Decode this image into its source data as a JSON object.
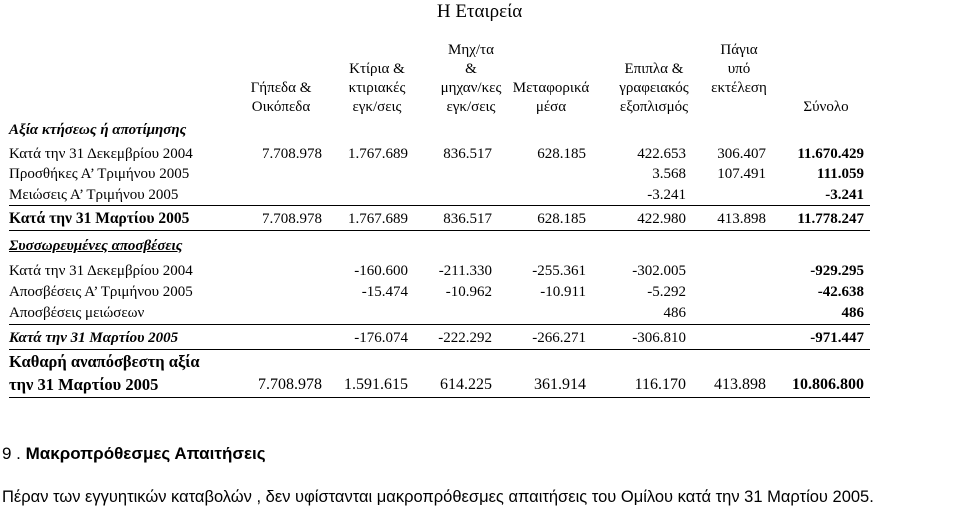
{
  "title": "Η Εταιρεία",
  "columns": [
    {
      "lines": [
        "",
        "Γήπεδα &",
        "Οικόπεδα"
      ]
    },
    {
      "lines": [
        "Κτίρια &",
        "κτιριακές",
        "εγκ/σεις"
      ]
    },
    {
      "lines": [
        "Μηχ/τα",
        "&",
        "μηχαν/κες",
        "εγκ/σεις"
      ]
    },
    {
      "lines": [
        "",
        "Μεταφορικά",
        "μέσα"
      ]
    },
    {
      "lines": [
        "Επιπλα &",
        "γραφειακός",
        "εξοπλισμός"
      ]
    },
    {
      "lines": [
        "Πάγια",
        "υπό",
        "εκτέλεση"
      ]
    },
    {
      "lines": [
        "",
        "",
        "Σύνολο"
      ]
    }
  ],
  "cost_section_label": "Αξία κτήσεως ή αποτίμησης",
  "accum_section_label": "Συσσωρευμένες αποσβέσεις",
  "rows": [
    {
      "label": "Κατά την 31 Δεκεμβρίου 2004",
      "values": [
        "7.708.978",
        "1.767.689",
        "836.517",
        "628.185",
        "422.653",
        "306.407",
        "11.670.429"
      ]
    },
    {
      "label": "Προσθήκες Α’ Τριμήνου 2005",
      "values": [
        "",
        "",
        "",
        "",
        "3.568",
        "107.491",
        "111.059"
      ]
    },
    {
      "label": "Μειώσεις Α’ Τριμήνου 2005",
      "values": [
        "",
        "",
        "",
        "",
        "-3.241",
        "",
        "-3.241"
      ]
    },
    {
      "label": "Κατά την 31 Μαρτίου 2005",
      "values": [
        "7.708.978",
        "1.767.689",
        "836.517",
        "628.185",
        "422.980",
        "413.898",
        "11.778.247"
      ]
    },
    {
      "label": "Κατά την 31 Δεκεμβρίου 2004",
      "values": [
        "",
        "-160.600",
        "-211.330",
        "-255.361",
        "-302.005",
        "",
        "-929.295"
      ]
    },
    {
      "label": "Αποσβέσεις Α’ Τριμήνου 2005",
      "values": [
        "",
        "-15.474",
        "-10.962",
        "-10.911",
        "-5.292",
        "",
        "-42.638"
      ]
    },
    {
      "label": "Αποσβέσεις μειώσεων",
      "values": [
        "",
        "",
        "",
        "",
        "486",
        "",
        "486"
      ]
    },
    {
      "label": "Κατά την 31 Μαρτίου 2005",
      "values": [
        "",
        "-176.074",
        "-222.292",
        "-266.271",
        "-306.810",
        "",
        "-971.447"
      ]
    },
    {
      "label": "την 31 Μαρτίου 2005",
      "values": [
        "7.708.978",
        "1.591.615",
        "614.225",
        "361.914",
        "116.170",
        "413.898",
        "10.806.800"
      ]
    }
  ],
  "net_value_label": "Καθαρή αναπόσβεστη αξία",
  "section_number": "9 .",
  "section_title": "Μακροπρόθεσμες Απαιτήσεις",
  "paragraph": "Πέραν των εγγυητικών καταβολών , δεν υφίστανται μακροπρόθεσμες απαιτήσεις του Ομίλου κατά την 31 Μαρτίου 2005."
}
